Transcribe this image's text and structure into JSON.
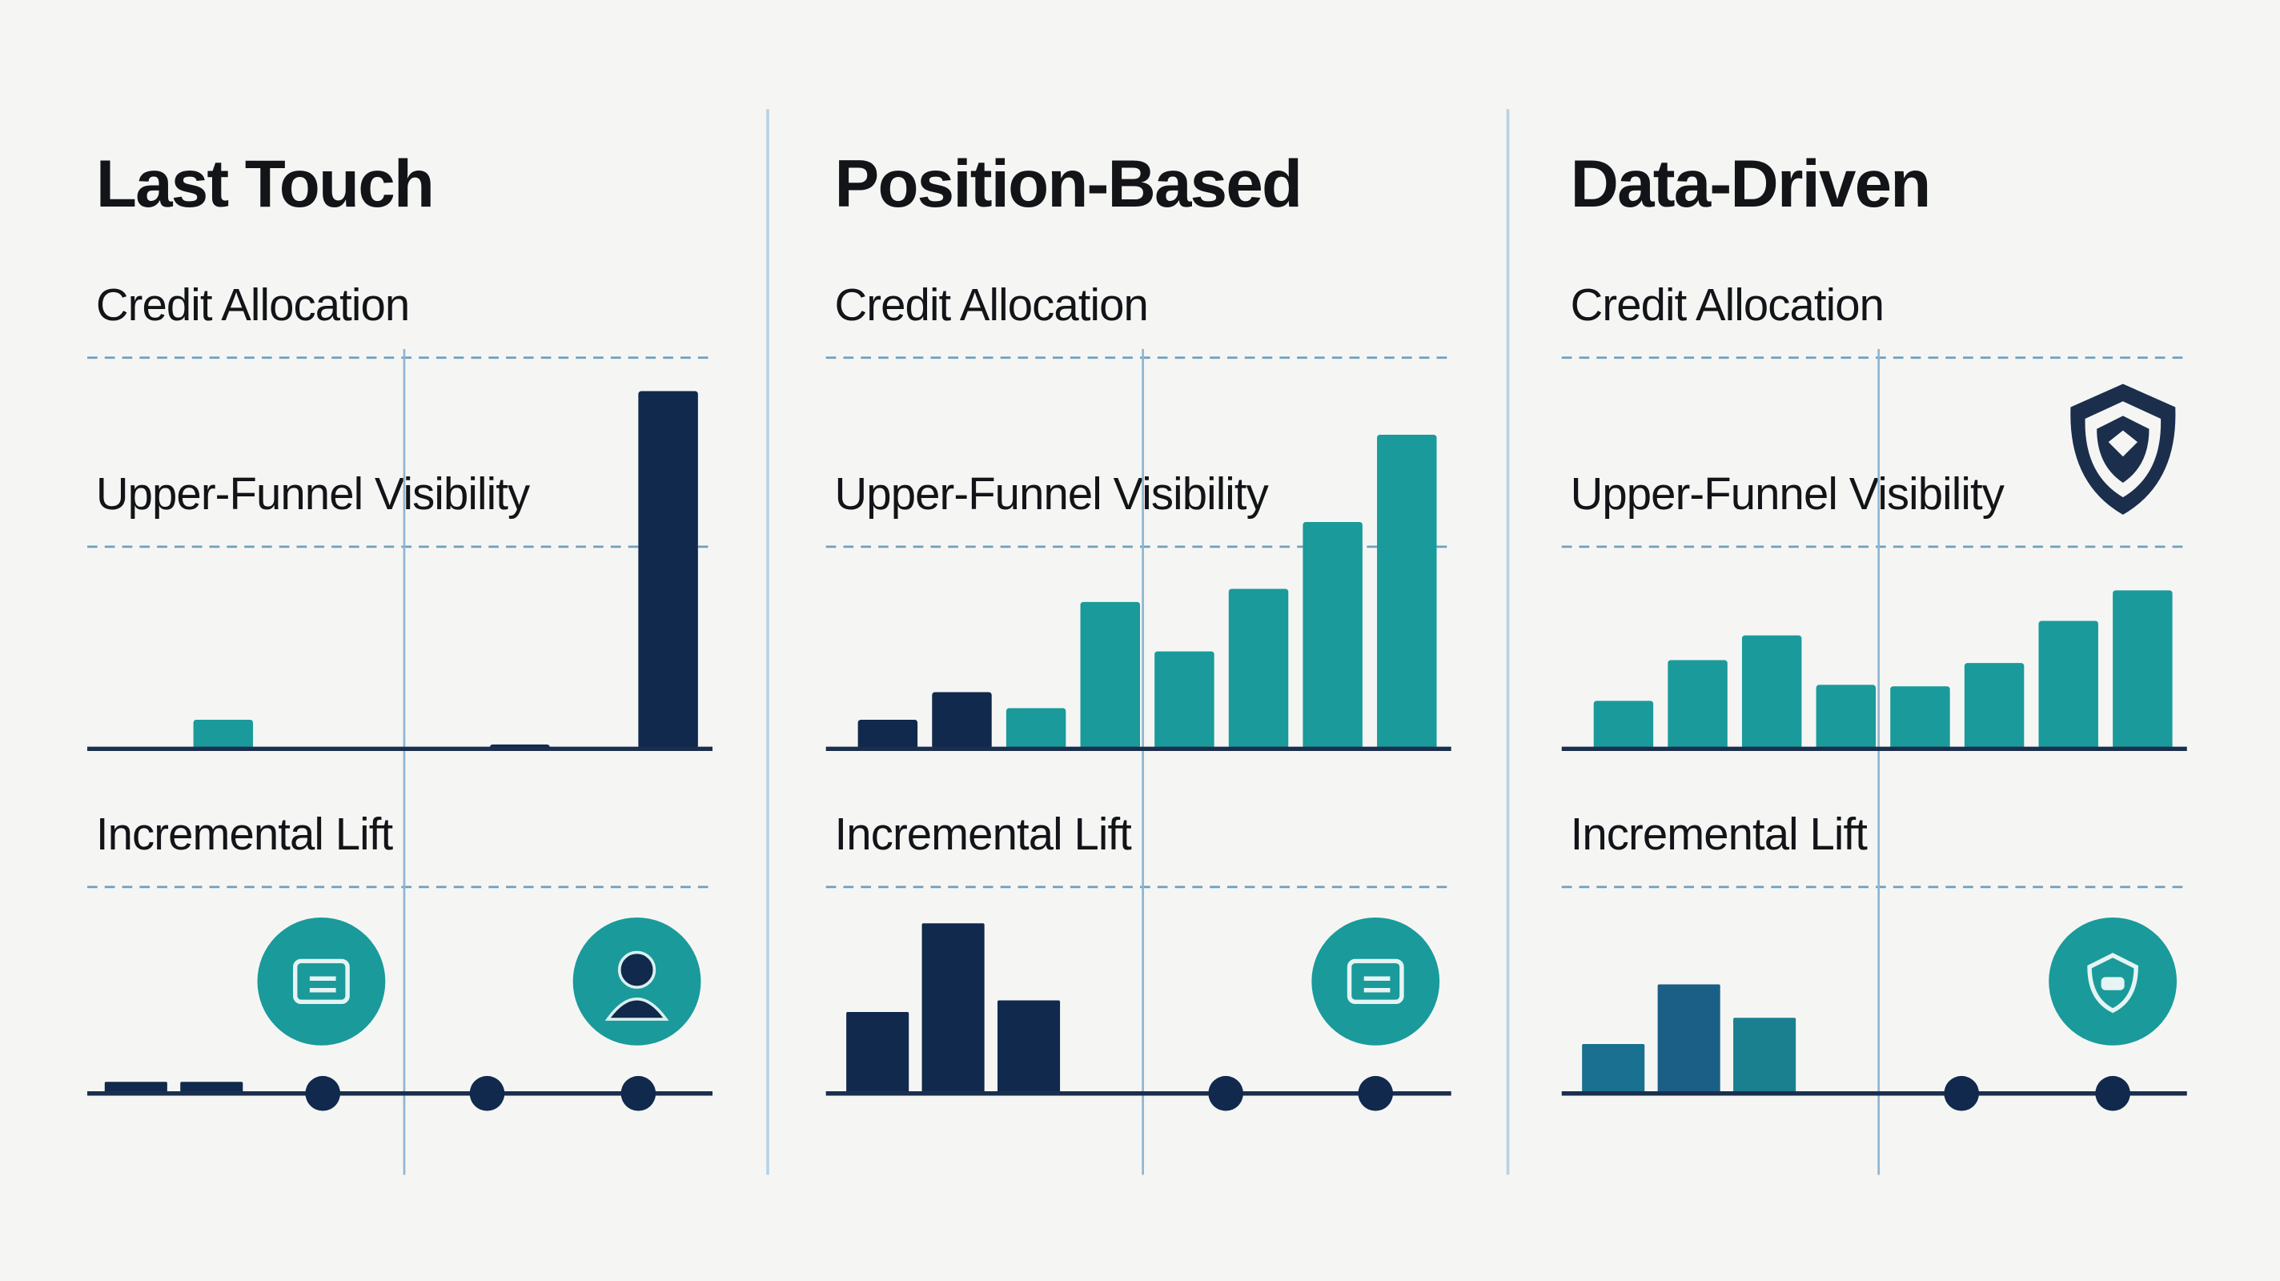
{
  "panels": [
    {
      "title": "Last Touch",
      "credit_label": "Credit Allocation",
      "visibility_label": "Upper-Funnel Visibility",
      "lift_label": "Incremental Lift",
      "credit_bars": {
        "values": [
          0,
          20,
          0,
          0,
          0,
          3,
          0,
          246
        ],
        "colors": [
          "#1a9a9b",
          "#1a9a9b",
          "#1a9a9b",
          "#1a9a9b",
          "#1a9a9b",
          "#11294d",
          "#1a9a9b",
          "#11294d"
        ]
      },
      "lift_bars": {
        "values": [
          8,
          8
        ],
        "colors": [
          "#11294d",
          "#11294d"
        ]
      }
    },
    {
      "title": "Position-Based",
      "credit_label": "Credit Allocation",
      "visibility_label": "Upper-Funnel Visibility",
      "lift_label": "Incremental Lift",
      "credit_bars": {
        "values": [
          20,
          39,
          28,
          101,
          67,
          110,
          156,
          216
        ],
        "colors": [
          "#11294d",
          "#11294d",
          "#1a9a9b",
          "#1a9a9b",
          "#1a9a9b",
          "#1a9a9b",
          "#1a9a9b",
          "#1a9a9b"
        ]
      },
      "lift_bars": {
        "values": [
          56,
          117,
          64
        ],
        "colors": [
          "#11294d",
          "#11294d",
          "#11294d"
        ]
      }
    },
    {
      "title": "Data-Driven",
      "credit_label": "Credit Allocation",
      "visibility_label": "Upper-Funnel Visibility",
      "lift_label": "Incremental Lift",
      "credit_bars": {
        "values": [
          33,
          61,
          78,
          44,
          43,
          59,
          88,
          109
        ],
        "colors": [
          "#1a9a9b",
          "#1a9a9b",
          "#1a9a9b",
          "#1a9a9b",
          "#1a9a9b",
          "#1a9a9b",
          "#1a9a9b",
          "#1a9a9b"
        ]
      },
      "lift_bars": {
        "values": [
          34,
          75,
          52
        ],
        "colors": [
          "#1a7090",
          "#1b5f86",
          "#1a8090"
        ]
      }
    }
  ]
}
